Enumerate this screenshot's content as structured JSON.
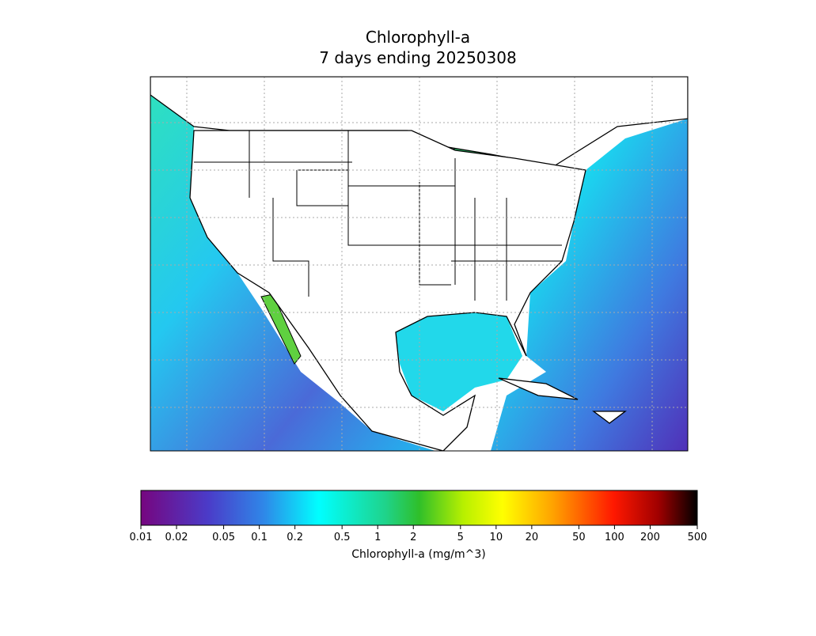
{
  "title": [
    "Chlorophyll-a",
    "7 days ending 20250308"
  ],
  "colorbar": {
    "label": "Chlorophyll-a (mg/m^3)",
    "scale": "log",
    "lim": [
      0.01,
      500
    ],
    "ticks": [
      0.01,
      0.02,
      0.05,
      0.1,
      0.2,
      0.5,
      1,
      2,
      5,
      10,
      20,
      50,
      100,
      200,
      500
    ]
  }
}
